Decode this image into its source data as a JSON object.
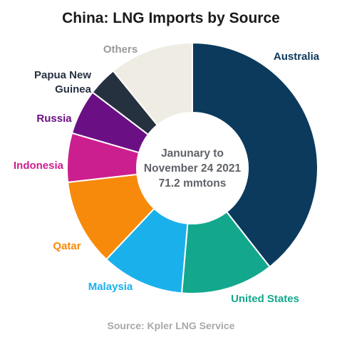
{
  "chart_data": {
    "type": "pie",
    "title": "China: LNG Imports by Source",
    "center_text": [
      "Janunary to",
      "November 24 2021",
      "71.2 mmtons"
    ],
    "source": "Source: Kpler LNG Service",
    "categories": [
      "Australia",
      "United States",
      "Malaysia",
      "Qatar",
      "Indonesia",
      "Russia",
      "Papua New Guinea",
      "Others"
    ],
    "label_lines": [
      [
        "Australia"
      ],
      [
        "United States"
      ],
      [
        "Malaysia"
      ],
      [
        "Qatar"
      ],
      [
        "Indonesia"
      ],
      [
        "Russia"
      ],
      [
        "Papua New",
        "Guinea"
      ],
      [
        "Others"
      ]
    ],
    "values": [
      40.6,
      12.3,
      11.0,
      11.5,
      6.5,
      6.0,
      3.9,
      11.2
    ],
    "unit": "% of total (estimated)",
    "colors": [
      "#0b3a5c",
      "#13a88e",
      "#1ab0ec",
      "#f78a0b",
      "#cc1f8f",
      "#6b0f85",
      "#263140",
      "#efede3"
    ],
    "start_angle_deg": 0,
    "direction": "clockwise from top"
  }
}
